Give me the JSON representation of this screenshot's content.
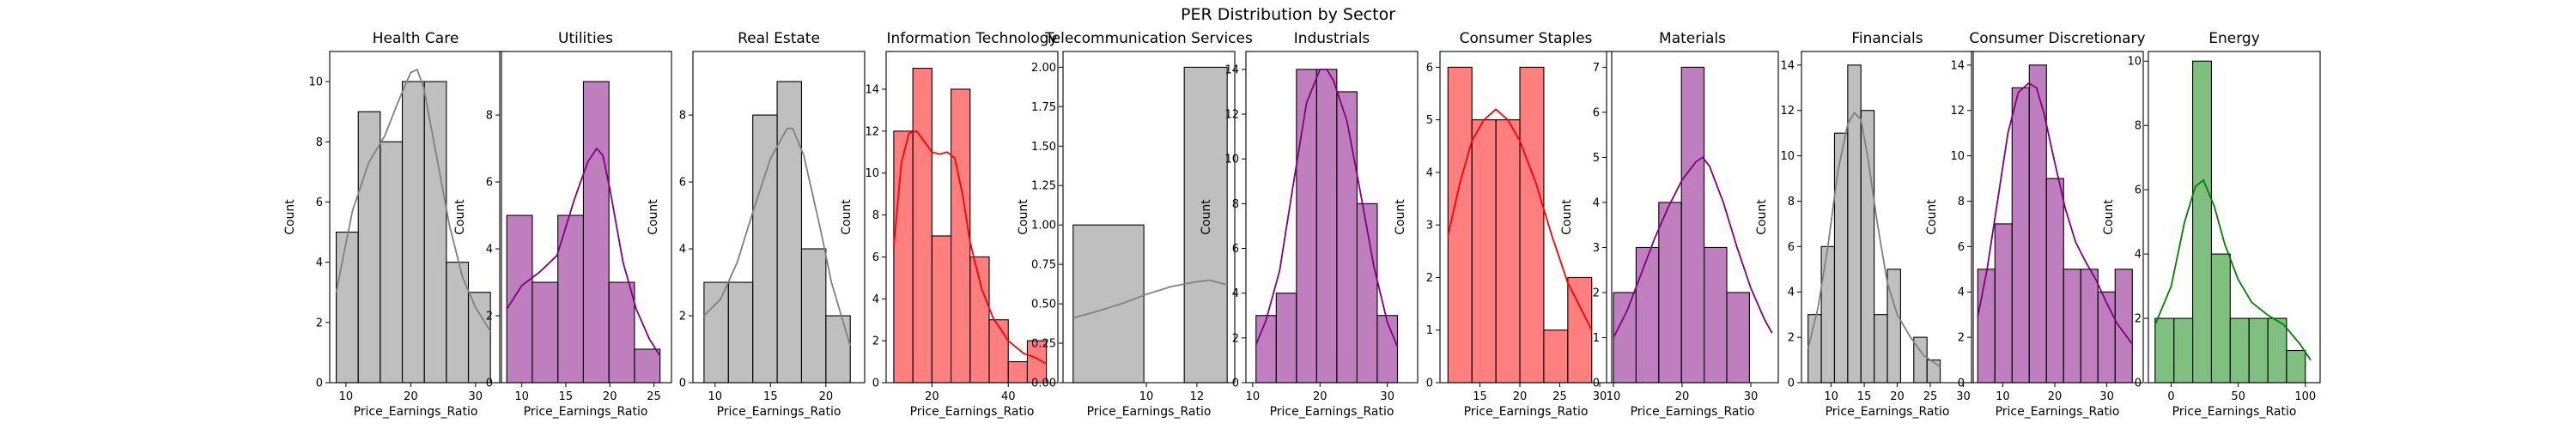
{
  "title": "PER Distribution by Sector",
  "chart_data": [
    {
      "type": "histogram",
      "title": "Health Care",
      "xlabel": "Price_Earnings_Ratio",
      "ylabel": "Count",
      "color": "#808080",
      "xlim": [
        7.5,
        34
      ],
      "ylim": [
        0,
        11
      ],
      "xticks": [
        10,
        20,
        30
      ],
      "yticks": [
        0,
        2,
        4,
        6,
        8,
        10
      ],
      "bins": [
        [
          8.5,
          11.9,
          5
        ],
        [
          11.9,
          15.3,
          9
        ],
        [
          15.3,
          18.7,
          8
        ],
        [
          18.7,
          22.1,
          10
        ],
        [
          22.1,
          25.5,
          10
        ],
        [
          25.5,
          28.9,
          4
        ],
        [
          28.9,
          32.3,
          3
        ]
      ],
      "kde": [
        [
          8.5,
          3.0
        ],
        [
          11,
          5.7
        ],
        [
          13.5,
          7.3
        ],
        [
          16,
          8.2
        ],
        [
          18,
          9.3
        ],
        [
          20,
          10.3
        ],
        [
          21,
          10.4
        ],
        [
          22,
          9.8
        ],
        [
          24,
          7.5
        ],
        [
          26,
          5.2
        ],
        [
          28,
          3.5
        ],
        [
          30,
          2.5
        ],
        [
          32.3,
          1.7
        ]
      ]
    },
    {
      "type": "histogram",
      "title": "Utilities",
      "xlabel": "Price_Earnings_Ratio",
      "ylabel": "Count",
      "color": "#800080",
      "xlim": [
        7.5,
        27
      ],
      "ylim": [
        0,
        9.9
      ],
      "xticks": [
        10,
        15,
        20,
        25
      ],
      "yticks": [
        0,
        2,
        4,
        6,
        8
      ],
      "bins": [
        [
          8.3,
          11.2,
          5
        ],
        [
          11.2,
          14.1,
          3
        ],
        [
          14.1,
          17,
          5
        ],
        [
          17,
          19.9,
          9
        ],
        [
          19.9,
          22.8,
          3
        ],
        [
          22.8,
          25.7,
          1
        ]
      ],
      "kde": [
        [
          8.3,
          2.2
        ],
        [
          10,
          2.9
        ],
        [
          12,
          3.3
        ],
        [
          14,
          3.8
        ],
        [
          16,
          5.5
        ],
        [
          17.5,
          6.6
        ],
        [
          18.5,
          7.0
        ],
        [
          19.2,
          6.8
        ],
        [
          20,
          5.8
        ],
        [
          21.5,
          3.6
        ],
        [
          23,
          2.2
        ],
        [
          24.5,
          1.3
        ],
        [
          25.7,
          0.8
        ]
      ]
    },
    {
      "type": "histogram",
      "title": "Real Estate",
      "xlabel": "Price_Earnings_Ratio",
      "ylabel": "Count",
      "color": "#808080",
      "xlim": [
        8,
        23.5
      ],
      "ylim": [
        0,
        9.9
      ],
      "xticks": [
        10,
        15,
        20
      ],
      "yticks": [
        0,
        2,
        4,
        6,
        8
      ],
      "bins": [
        [
          9,
          11.2,
          3
        ],
        [
          11.2,
          13.4,
          3
        ],
        [
          13.4,
          15.6,
          8
        ],
        [
          15.6,
          17.8,
          9
        ],
        [
          17.8,
          20,
          4
        ],
        [
          20,
          22.2,
          2
        ]
      ],
      "kde": [
        [
          9,
          2.0
        ],
        [
          10.5,
          2.5
        ],
        [
          12,
          3.6
        ],
        [
          13.5,
          5.2
        ],
        [
          15,
          6.7
        ],
        [
          16.5,
          7.6
        ],
        [
          17,
          7.6
        ],
        [
          18,
          6.8
        ],
        [
          19.5,
          4.6
        ],
        [
          20.5,
          3.0
        ],
        [
          22.2,
          1.1
        ]
      ]
    },
    {
      "type": "histogram",
      "title": "Information Technology",
      "xlabel": "Price_Earnings_Ratio",
      "ylabel": "Count",
      "color": "#ff0000",
      "xlim": [
        8,
        53
      ],
      "ylim": [
        0,
        15.8
      ],
      "xticks": [
        20,
        40
      ],
      "yticks": [
        0,
        2,
        4,
        6,
        8,
        10,
        12,
        14
      ],
      "bins": [
        [
          10,
          15,
          12
        ],
        [
          15,
          20,
          15
        ],
        [
          20,
          25,
          7
        ],
        [
          25,
          30,
          14
        ],
        [
          30,
          35,
          6
        ],
        [
          35,
          40,
          3
        ],
        [
          40,
          45,
          1
        ],
        [
          45,
          50,
          2
        ]
      ],
      "kde": [
        [
          10,
          6.5
        ],
        [
          12,
          10.5
        ],
        [
          14,
          11.9
        ],
        [
          16,
          12.0
        ],
        [
          18,
          11.5
        ],
        [
          20,
          11.0
        ],
        [
          22,
          10.9
        ],
        [
          24,
          11.0
        ],
        [
          26,
          10.7
        ],
        [
          28,
          9.0
        ],
        [
          30,
          6.7
        ],
        [
          33,
          4.5
        ],
        [
          36,
          3.1
        ],
        [
          40,
          2.0
        ],
        [
          44,
          1.4
        ],
        [
          47,
          1.2
        ],
        [
          50,
          0.9
        ]
      ]
    },
    {
      "type": "histogram",
      "title": "Telecommunication Services",
      "xlabel": "Price_Earnings_Ratio",
      "ylabel": "Count",
      "color": "#808080",
      "xlim": [
        6.7,
        13.5
      ],
      "ylim": [
        0,
        2.1
      ],
      "xticks": [
        10,
        12
      ],
      "yticks": [
        0,
        0.25,
        0.5,
        0.75,
        1.0,
        1.25,
        1.5,
        1.75,
        2.0
      ],
      "ytick_labels": [
        "0.00",
        "0.25",
        "0.50",
        "0.75",
        "1.00",
        "1.25",
        "1.50",
        "1.75",
        "2.00"
      ],
      "bins": [
        [
          7.1,
          9.9,
          1
        ],
        [
          11.5,
          13.2,
          2
        ]
      ],
      "kde": [
        [
          7.1,
          0.41
        ],
        [
          8,
          0.45
        ],
        [
          9,
          0.5
        ],
        [
          10,
          0.56
        ],
        [
          11,
          0.61
        ],
        [
          12,
          0.64
        ],
        [
          12.5,
          0.65
        ],
        [
          13.2,
          0.62
        ]
      ]
    },
    {
      "type": "histogram",
      "title": "Industrials",
      "xlabel": "Price_Earnings_Ratio",
      "ylabel": "Count",
      "color": "#800080",
      "xlim": [
        9,
        34.5
      ],
      "ylim": [
        0,
        14.8
      ],
      "xticks": [
        10,
        20,
        30
      ],
      "yticks": [
        0,
        2,
        4,
        6,
        8,
        10,
        12,
        14
      ],
      "bins": [
        [
          10.5,
          13.5,
          3
        ],
        [
          13.5,
          16.5,
          4
        ],
        [
          16.5,
          19.5,
          14
        ],
        [
          19.5,
          22.5,
          14
        ],
        [
          22.5,
          25.5,
          13
        ],
        [
          25.5,
          28.5,
          8
        ],
        [
          28.5,
          31.5,
          3
        ]
      ],
      "kde": [
        [
          10.5,
          1.7
        ],
        [
          12,
          2.8
        ],
        [
          14,
          5.0
        ],
        [
          16,
          8.8
        ],
        [
          18,
          12.5
        ],
        [
          20,
          14.0
        ],
        [
          21,
          14.0
        ],
        [
          22,
          13.5
        ],
        [
          24,
          11.7
        ],
        [
          26,
          8.5
        ],
        [
          28,
          5.2
        ],
        [
          30,
          2.7
        ],
        [
          31.5,
          1.6
        ]
      ]
    },
    {
      "type": "histogram",
      "title": "Consumer Staples",
      "xlabel": "Price_Earnings_Ratio",
      "ylabel": "Count",
      "color": "#ff0000",
      "xlim": [
        10,
        31.5
      ],
      "ylim": [
        0,
        6.3
      ],
      "xticks": [
        15,
        20,
        25,
        30
      ],
      "yticks": [
        0,
        1,
        2,
        3,
        4,
        5,
        6
      ],
      "bins": [
        [
          11,
          14,
          6
        ],
        [
          14,
          17,
          5
        ],
        [
          17,
          20,
          5
        ],
        [
          20,
          23,
          6
        ],
        [
          23,
          26,
          1
        ],
        [
          26,
          29,
          2
        ]
      ],
      "kde": [
        [
          11,
          2.8
        ],
        [
          12.5,
          3.8
        ],
        [
          14,
          4.6
        ],
        [
          15.5,
          5.0
        ],
        [
          17,
          5.2
        ],
        [
          18.5,
          5.0
        ],
        [
          20,
          4.6
        ],
        [
          22,
          3.8
        ],
        [
          24,
          2.8
        ],
        [
          26,
          1.9
        ],
        [
          28,
          1.3
        ],
        [
          29,
          1.0
        ]
      ]
    },
    {
      "type": "histogram",
      "title": "Materials",
      "xlabel": "Price_Earnings_Ratio",
      "ylabel": "Count",
      "color": "#800080",
      "xlim": [
        9,
        34
      ],
      "ylim": [
        0,
        7.35
      ],
      "xticks": [
        10,
        20,
        30
      ],
      "yticks": [
        0,
        1,
        2,
        3,
        4,
        5,
        6,
        7
      ],
      "bins": [
        [
          10,
          13.3,
          2
        ],
        [
          13.3,
          16.6,
          3
        ],
        [
          16.6,
          19.9,
          4
        ],
        [
          19.9,
          23.2,
          7
        ],
        [
          23.2,
          26.5,
          3
        ],
        [
          26.5,
          29.8,
          2
        ],
        [
          29.8,
          33.1,
          0
        ]
      ],
      "kde": [
        [
          10,
          1.0
        ],
        [
          12,
          1.6
        ],
        [
          14,
          2.4
        ],
        [
          16,
          3.2
        ],
        [
          18,
          3.9
        ],
        [
          20,
          4.5
        ],
        [
          22,
          4.9
        ],
        [
          23,
          5.0
        ],
        [
          24,
          4.8
        ],
        [
          26,
          4.0
        ],
        [
          28,
          3.0
        ],
        [
          30,
          2.1
        ],
        [
          32,
          1.4
        ],
        [
          33.1,
          1.1
        ]
      ]
    },
    {
      "type": "histogram",
      "title": "Financials",
      "xlabel": "Price_Earnings_Ratio",
      "ylabel": "Count",
      "color": "#808080",
      "xlim": [
        5.5,
        31.5
      ],
      "ylim": [
        0,
        14.6
      ],
      "xticks": [
        10,
        15,
        20,
        25,
        30
      ],
      "yticks": [
        0,
        2,
        4,
        6,
        8,
        10,
        12,
        14
      ],
      "bins": [
        [
          6.5,
          8.5,
          3
        ],
        [
          8.5,
          10.5,
          6
        ],
        [
          10.5,
          12.5,
          11
        ],
        [
          12.5,
          14.5,
          14
        ],
        [
          14.5,
          16.5,
          12
        ],
        [
          16.5,
          18.5,
          3
        ],
        [
          18.5,
          20.5,
          5
        ],
        [
          20.5,
          22.5,
          0
        ],
        [
          22.5,
          24.5,
          2
        ],
        [
          24.5,
          26.5,
          1
        ]
      ],
      "kde": [
        [
          6.5,
          1.5
        ],
        [
          8,
          3.3
        ],
        [
          9.5,
          6.0
        ],
        [
          11,
          9.3
        ],
        [
          12.5,
          11.4
        ],
        [
          13.5,
          11.9
        ],
        [
          14.5,
          11.6
        ],
        [
          15.5,
          10.0
        ],
        [
          17,
          7.0
        ],
        [
          18.5,
          4.4
        ],
        [
          20,
          3.0
        ],
        [
          22,
          2.0
        ],
        [
          24,
          1.2
        ],
        [
          26.5,
          0.7
        ]
      ]
    },
    {
      "type": "histogram",
      "title": "Consumer Discretionary",
      "xlabel": "Price_Earnings_Ratio",
      "ylabel": "Count",
      "color": "#800080",
      "xlim": [
        4,
        37
      ],
      "ylim": [
        0,
        14.6
      ],
      "xticks": [
        10,
        20,
        30
      ],
      "yticks": [
        0,
        2,
        4,
        6,
        8,
        10,
        12,
        14
      ],
      "bins": [
        [
          5.2,
          8.5,
          5
        ],
        [
          8.5,
          11.8,
          7
        ],
        [
          11.8,
          15.1,
          13
        ],
        [
          15.1,
          18.4,
          14
        ],
        [
          18.4,
          21.7,
          9
        ],
        [
          21.7,
          25,
          5
        ],
        [
          25,
          28.3,
          5
        ],
        [
          28.3,
          31.6,
          4
        ],
        [
          31.6,
          34.9,
          5
        ]
      ],
      "kde": [
        [
          5.2,
          2.9
        ],
        [
          7,
          5.0
        ],
        [
          9,
          8.0
        ],
        [
          11,
          11.0
        ],
        [
          13,
          12.8
        ],
        [
          15,
          13.2
        ],
        [
          16.5,
          13.0
        ],
        [
          18,
          11.8
        ],
        [
          20,
          9.7
        ],
        [
          22,
          7.7
        ],
        [
          24,
          6.2
        ],
        [
          26,
          5.3
        ],
        [
          28,
          4.5
        ],
        [
          30,
          3.5
        ],
        [
          32,
          2.6
        ],
        [
          34.9,
          1.7
        ]
      ]
    },
    {
      "type": "histogram",
      "title": "Energy",
      "xlabel": "Price_Earnings_Ratio",
      "ylabel": "Count",
      "color": "#008000",
      "xlim": [
        -17,
        111
      ],
      "ylim": [
        0,
        10.3
      ],
      "xticks": [
        0,
        50,
        100
      ],
      "yticks": [
        0,
        2,
        4,
        6,
        8,
        10
      ],
      "bins": [
        [
          -12,
          2,
          2
        ],
        [
          2,
          16,
          2
        ],
        [
          16,
          30,
          10
        ],
        [
          30,
          44,
          4
        ],
        [
          44,
          58,
          2
        ],
        [
          58,
          72,
          2
        ],
        [
          72,
          86,
          2
        ],
        [
          86,
          100,
          1
        ],
        [
          100,
          106,
          0
        ]
      ],
      "kde": [
        [
          -12,
          1.8
        ],
        [
          0,
          3.0
        ],
        [
          10,
          5.0
        ],
        [
          18,
          6.1
        ],
        [
          24,
          6.3
        ],
        [
          32,
          5.5
        ],
        [
          40,
          4.3
        ],
        [
          50,
          3.2
        ],
        [
          60,
          2.5
        ],
        [
          72,
          2.1
        ],
        [
          84,
          1.8
        ],
        [
          96,
          1.2
        ],
        [
          104,
          0.7
        ]
      ]
    }
  ]
}
